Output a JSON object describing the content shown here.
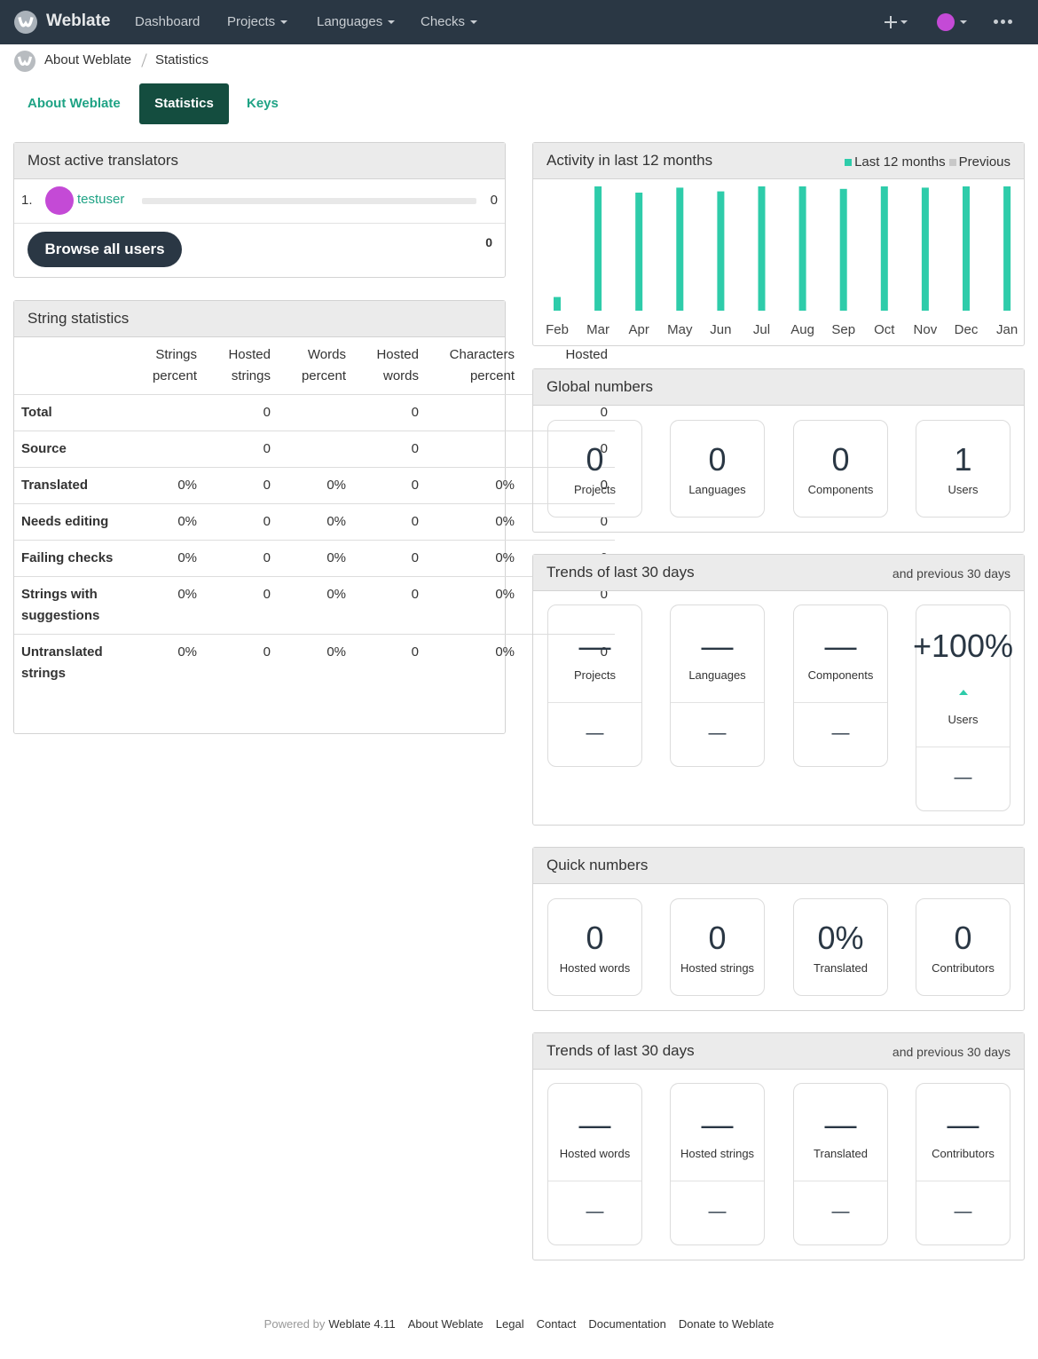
{
  "nav": {
    "brand": "Weblate",
    "menu": [
      "Dashboard",
      "Projects",
      "Languages",
      "Checks"
    ]
  },
  "breadcrumb": [
    "About Weblate",
    "Statistics"
  ],
  "tabs": [
    "About Weblate",
    "Statistics",
    "Keys"
  ],
  "translators": {
    "title": "Most active translators",
    "rows": [
      {
        "rank": "1.",
        "name": "testuser",
        "count": 0
      }
    ],
    "button": "Browse all users",
    "total": 0
  },
  "string_statistics": {
    "title": "String statistics",
    "columns": [
      "Strings percent",
      "Hosted strings",
      "Words percent",
      "Hosted words",
      "Characters percent",
      "Hosted characters"
    ],
    "rows": [
      {
        "label": "Total",
        "cells": [
          null,
          0,
          null,
          0,
          null,
          0
        ]
      },
      {
        "label": "Source",
        "cells": [
          null,
          0,
          null,
          0,
          null,
          0
        ]
      },
      {
        "label": "Translated",
        "cells": [
          "0%",
          0,
          "0%",
          0,
          "0%",
          0
        ]
      },
      {
        "label": "Needs editing",
        "cells": [
          "0%",
          0,
          "0%",
          0,
          "0%",
          0
        ]
      },
      {
        "label": "Failing checks",
        "cells": [
          "0%",
          0,
          "0%",
          0,
          "0%",
          0
        ]
      },
      {
        "label": "Strings with suggestions",
        "cells": [
          "0%",
          0,
          "0%",
          0,
          "0%",
          0
        ]
      },
      {
        "label": "Untranslated strings",
        "cells": [
          "0%",
          0,
          "0%",
          0,
          "0%",
          0
        ]
      }
    ]
  },
  "chart_data": {
    "type": "bar",
    "title": "Activity in last 12 months",
    "categories": [
      "Feb",
      "Mar",
      "Apr",
      "May",
      "Jun",
      "Jul",
      "Aug",
      "Sep",
      "Oct",
      "Nov",
      "Dec",
      "Jan"
    ],
    "series": [
      {
        "name": "Last 12 months",
        "color": "#2eccaa",
        "values": [
          11,
          100,
          95,
          99,
          96,
          100,
          100,
          98,
          100,
          99,
          100,
          100
        ]
      },
      {
        "name": "Previous",
        "color": "#c8c8c8",
        "values": [
          0,
          0,
          0,
          0,
          0,
          0,
          0,
          0,
          0,
          0,
          0,
          0
        ]
      }
    ]
  },
  "global_numbers": {
    "title": "Global numbers",
    "items": [
      {
        "value": 0,
        "label": "Projects"
      },
      {
        "value": 0,
        "label": "Languages"
      },
      {
        "value": 0,
        "label": "Components"
      },
      {
        "value": 1,
        "label": "Users"
      }
    ]
  },
  "trends": {
    "title": "Trends of last 30 days",
    "subtitle": "and previous 30 days",
    "items": [
      {
        "value": "—",
        "label": "Projects",
        "previous": "—"
      },
      {
        "value": "—",
        "label": "Languages",
        "previous": "—"
      },
      {
        "value": "—",
        "label": "Components",
        "previous": "—"
      },
      {
        "value": "+100%",
        "label": "Users",
        "previous": "—"
      }
    ]
  },
  "quick_numbers": {
    "title": "Quick numbers",
    "items": [
      {
        "value": 0,
        "label": "Hosted words"
      },
      {
        "value": 0,
        "label": "Hosted strings"
      },
      {
        "value": "0%",
        "label": "Translated"
      },
      {
        "value": 0,
        "label": "Contributors"
      }
    ]
  },
  "quick_trends": {
    "title": "Trends of last 30 days",
    "subtitle": "and previous 30 days",
    "items": [
      {
        "value": "—",
        "label": "Hosted words",
        "previous": "—"
      },
      {
        "value": "—",
        "label": "Hosted strings",
        "previous": "—"
      },
      {
        "value": "—",
        "label": "Translated",
        "previous": "—"
      },
      {
        "value": "—",
        "label": "Contributors",
        "previous": "—"
      }
    ]
  },
  "footer": {
    "powered_by": "Powered by",
    "links": [
      "Weblate 4.11",
      "About Weblate",
      "Legal",
      "Contact",
      "Documentation",
      "Donate to Weblate"
    ]
  }
}
